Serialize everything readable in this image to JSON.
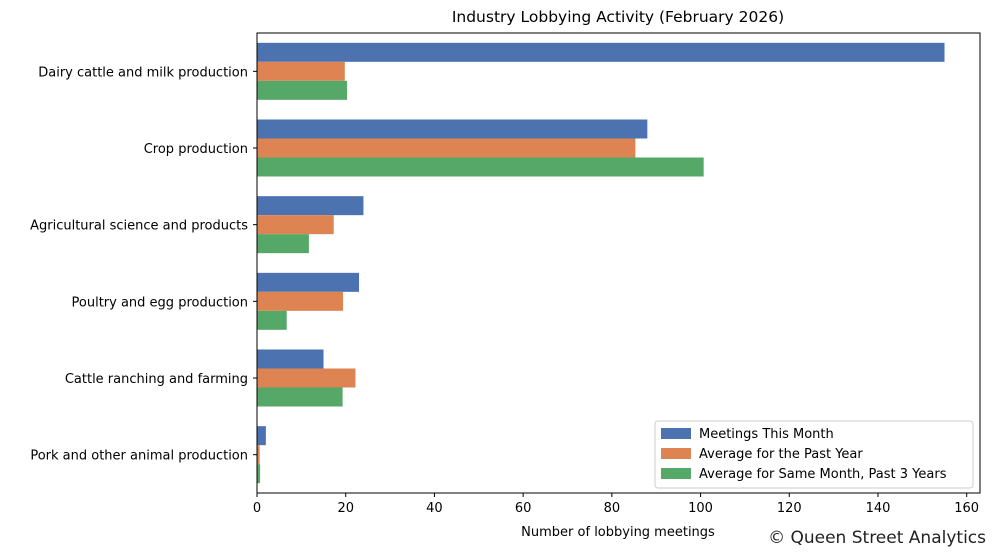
{
  "chart_data": {
    "type": "bar",
    "orientation": "horizontal",
    "title": "Industry Lobbying Activity (February 2026)",
    "xlabel": "Number of lobbying meetings",
    "ylabel": "",
    "xlim": [
      0,
      163
    ],
    "x_ticks": [
      0,
      20,
      40,
      60,
      80,
      100,
      120,
      140,
      160
    ],
    "grid": false,
    "legend_position": "lower-right",
    "categories": [
      "Dairy cattle and milk production",
      "Crop production",
      "Agricultural science and products",
      "Poultry and egg production",
      "Cattle ranching and farming",
      "Pork and other animal production"
    ],
    "series": [
      {
        "name": "Meetings This Month",
        "color": "#4c72b0",
        "values": [
          155,
          88,
          24,
          23,
          15,
          2
        ]
      },
      {
        "name": "Average for the Past Year",
        "color": "#dd8452",
        "values": [
          19.8,
          85.3,
          17.3,
          19.4,
          22.2,
          0.6
        ]
      },
      {
        "name": "Average for Same Month, Past 3 Years",
        "color": "#55a868",
        "values": [
          20.3,
          100.7,
          11.7,
          6.7,
          19.3,
          0.7
        ]
      }
    ]
  },
  "credit": "© Queen Street Analytics"
}
